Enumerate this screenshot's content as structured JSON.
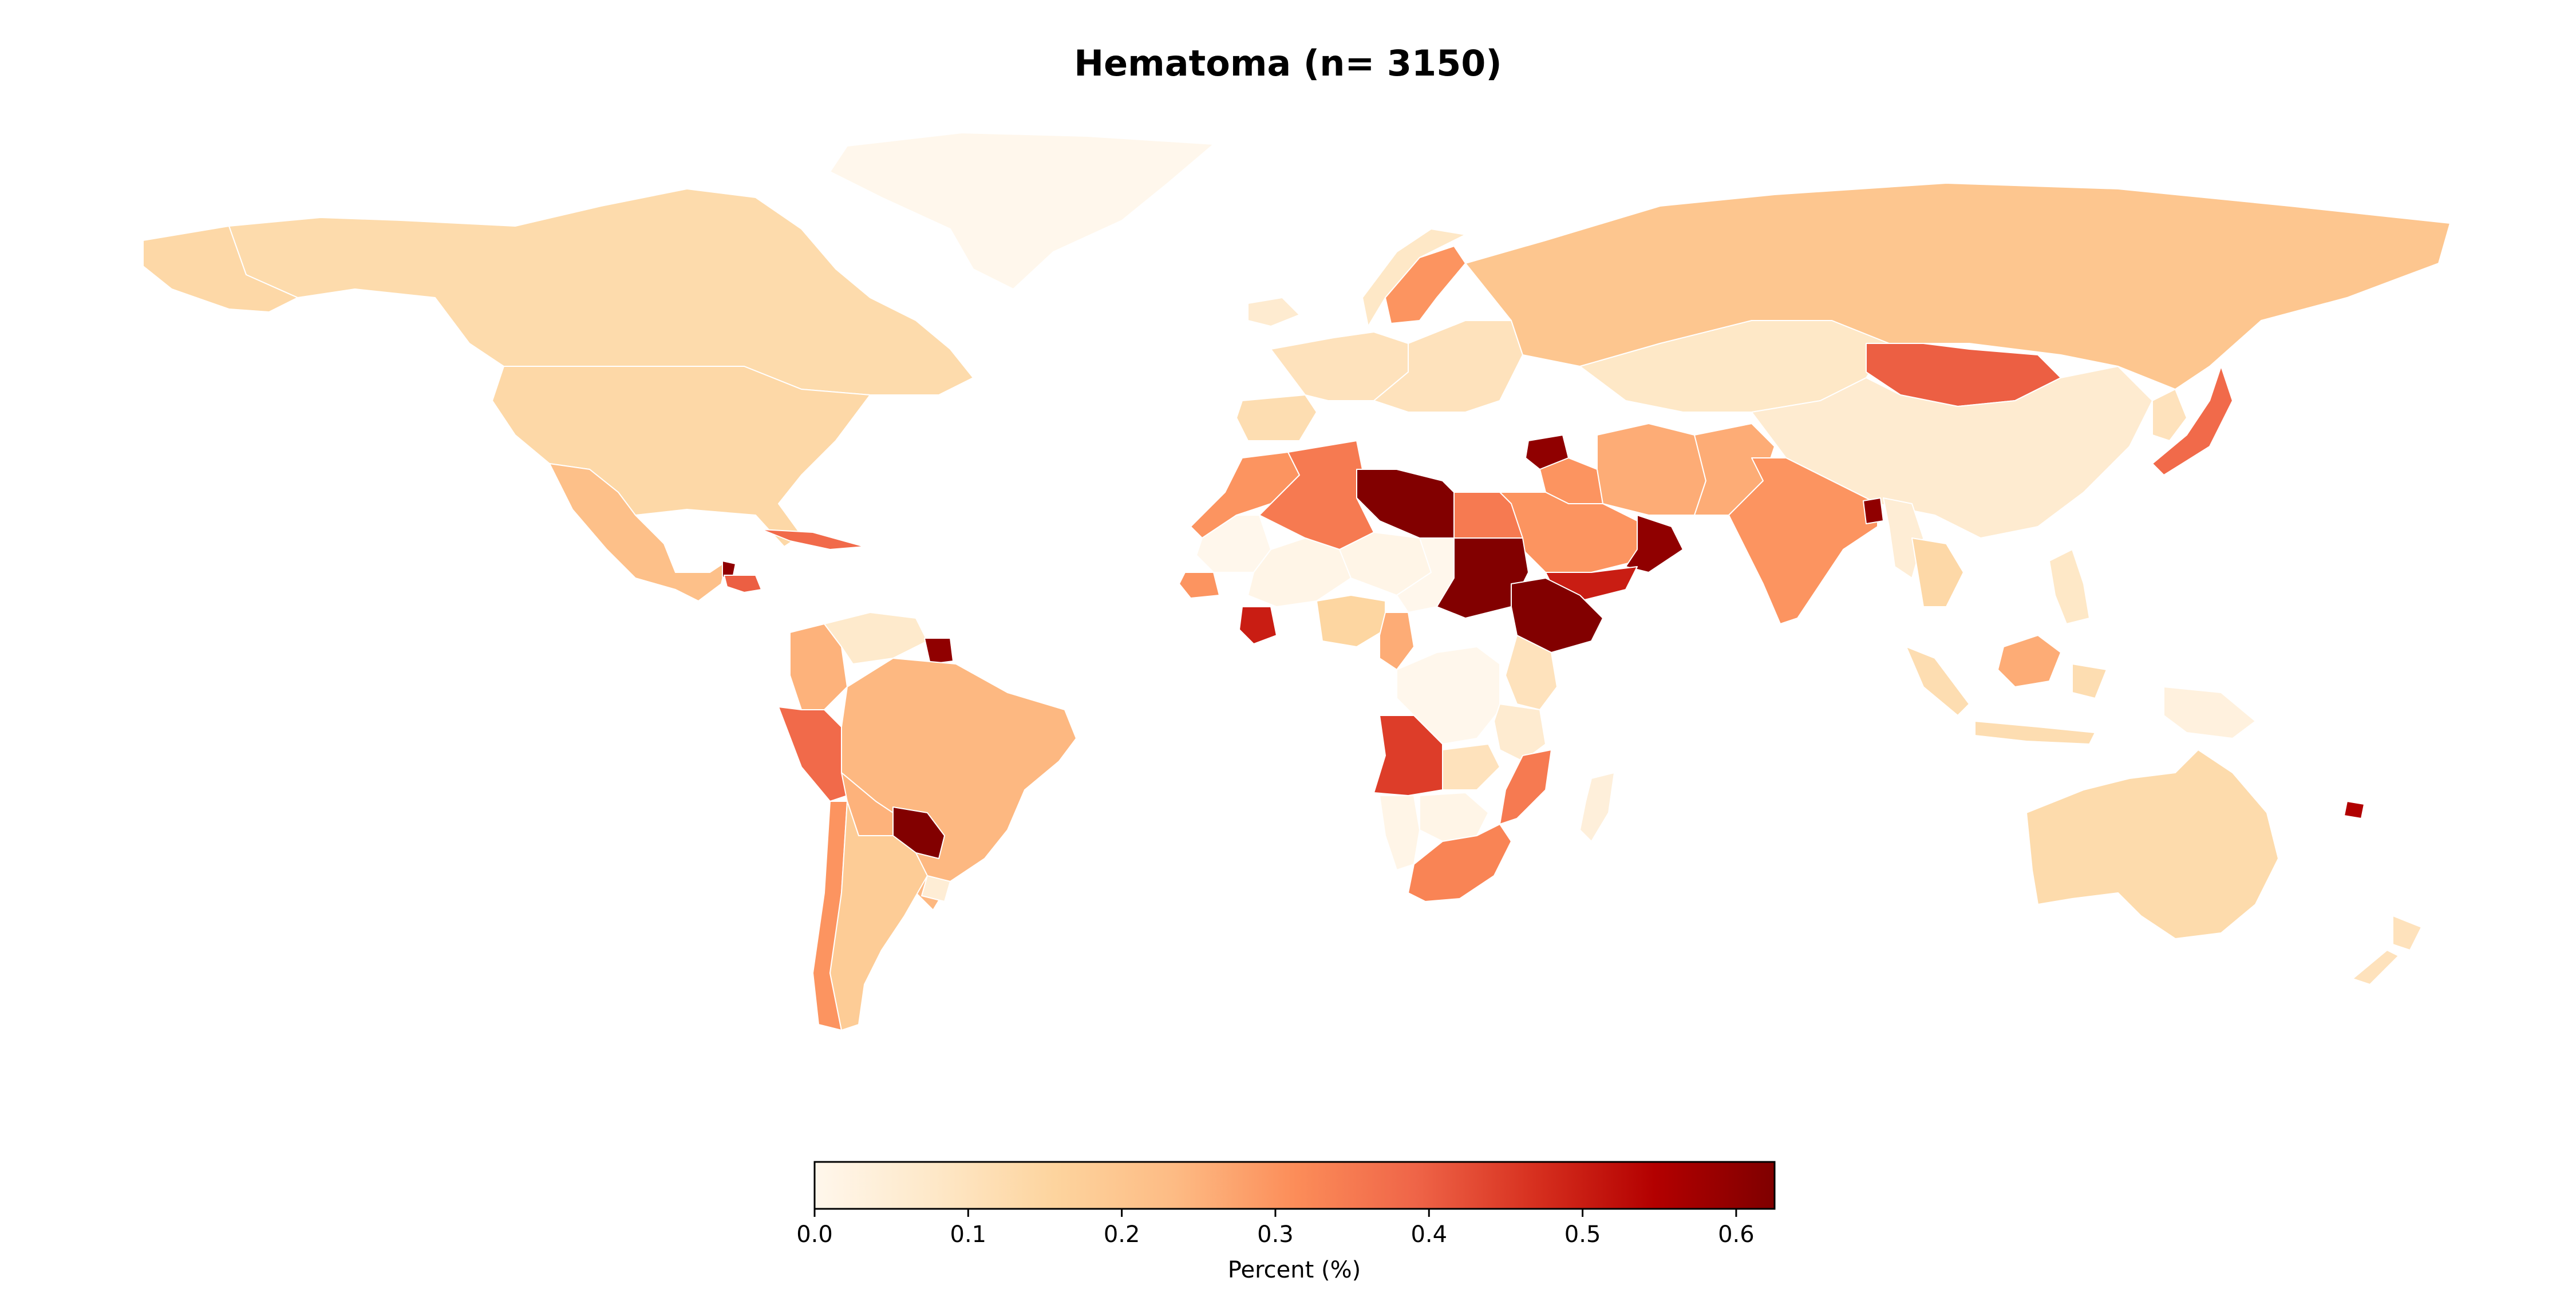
{
  "title": "Hematoma (n= 3150)",
  "colorbar": {
    "label": "Percent (%)",
    "min": 0.0,
    "max": 0.625,
    "colormap": "OrRd",
    "stops": [
      "#fff7ec",
      "#fee8c8",
      "#fdd49e",
      "#fdbb84",
      "#fc8d59",
      "#ef6548",
      "#d7301f",
      "#b30000",
      "#7f0000"
    ],
    "ticks": [
      0.0,
      0.1,
      0.2,
      0.3,
      0.4,
      0.5,
      0.6
    ],
    "tick_labels": [
      "0.0",
      "0.1",
      "0.2",
      "0.3",
      "0.4",
      "0.5",
      "0.6"
    ]
  },
  "regions": [
    {
      "name": "Greenland",
      "value": 0.0
    },
    {
      "name": "Canada",
      "value": 0.13
    },
    {
      "name": "United States",
      "value": 0.14
    },
    {
      "name": "Alaska",
      "value": 0.14
    },
    {
      "name": "Mexico",
      "value": 0.22
    },
    {
      "name": "Guatemala",
      "value": 0.6
    },
    {
      "name": "Honduras",
      "value": 0.4
    },
    {
      "name": "Cuba",
      "value": 0.38
    },
    {
      "name": "Colombia",
      "value": 0.25
    },
    {
      "name": "Venezuela",
      "value": 0.07
    },
    {
      "name": "Suriname",
      "value": 0.6
    },
    {
      "name": "Peru",
      "value": 0.38
    },
    {
      "name": "Brazil",
      "value": 0.24
    },
    {
      "name": "Bolivia",
      "value": 0.25
    },
    {
      "name": "Paraguay",
      "value": 0.62
    },
    {
      "name": "Chile",
      "value": 0.3
    },
    {
      "name": "Argentina",
      "value": 0.18
    },
    {
      "name": "Uruguay",
      "value": 0.05
    },
    {
      "name": "Iceland",
      "value": 0.06
    },
    {
      "name": "Sweden",
      "value": 0.3
    },
    {
      "name": "Norway",
      "value": 0.08
    },
    {
      "name": "Western Europe",
      "value": 0.1
    },
    {
      "name": "Iberia",
      "value": 0.12
    },
    {
      "name": "Eastern Europe",
      "value": 0.1
    },
    {
      "name": "Russia",
      "value": 0.2
    },
    {
      "name": "Kazakhstan",
      "value": 0.08
    },
    {
      "name": "Mongolia",
      "value": 0.4
    },
    {
      "name": "China",
      "value": 0.06
    },
    {
      "name": "Japan",
      "value": 0.38
    },
    {
      "name": "Korea",
      "value": 0.1
    },
    {
      "name": "Syria",
      "value": 0.6
    },
    {
      "name": "Iraq",
      "value": 0.3
    },
    {
      "name": "Iran",
      "value": 0.26
    },
    {
      "name": "Saudi Arabia",
      "value": 0.3
    },
    {
      "name": "Oman",
      "value": 0.6
    },
    {
      "name": "Yemen",
      "value": 0.5
    },
    {
      "name": "Pakistan",
      "value": 0.26
    },
    {
      "name": "India",
      "value": 0.3
    },
    {
      "name": "Bangladesh",
      "value": 0.6
    },
    {
      "name": "Myanmar",
      "value": 0.05
    },
    {
      "name": "Thailand",
      "value": 0.14
    },
    {
      "name": "Indonesia",
      "value": 0.12
    },
    {
      "name": "Borneo",
      "value": 0.26
    },
    {
      "name": "Philippines",
      "value": 0.08
    },
    {
      "name": "Morocco",
      "value": 0.3
    },
    {
      "name": "Algeria",
      "value": 0.35
    },
    {
      "name": "Libya",
      "value": 0.62
    },
    {
      "name": "Egypt",
      "value": 0.35
    },
    {
      "name": "Mauritania",
      "value": 0.0
    },
    {
      "name": "Mali",
      "value": 0.01
    },
    {
      "name": "Niger",
      "value": 0.01
    },
    {
      "name": "Chad",
      "value": 0.0
    },
    {
      "name": "Sudan",
      "value": 0.62
    },
    {
      "name": "Ethiopia",
      "value": 0.62
    },
    {
      "name": "Senegal",
      "value": 0.3
    },
    {
      "name": "Cote d'Ivoire",
      "value": 0.5
    },
    {
      "name": "Nigeria",
      "value": 0.15
    },
    {
      "name": "Cameroon",
      "value": 0.26
    },
    {
      "name": "DR Congo",
      "value": 0.0
    },
    {
      "name": "Kenya",
      "value": 0.1
    },
    {
      "name": "Tanzania",
      "value": 0.06
    },
    {
      "name": "Angola",
      "value": 0.45
    },
    {
      "name": "Zambia",
      "value": 0.1
    },
    {
      "name": "Mozambique",
      "value": 0.35
    },
    {
      "name": "Namibia",
      "value": 0.01
    },
    {
      "name": "Botswana",
      "value": 0.01
    },
    {
      "name": "South Africa",
      "value": 0.33
    },
    {
      "name": "Madagascar",
      "value": 0.04
    },
    {
      "name": "Australia",
      "value": 0.13
    },
    {
      "name": "New Zealand",
      "value": 0.1
    },
    {
      "name": "Papua New Guinea",
      "value": 0.03
    },
    {
      "name": "Fiji",
      "value": 0.55
    }
  ]
}
